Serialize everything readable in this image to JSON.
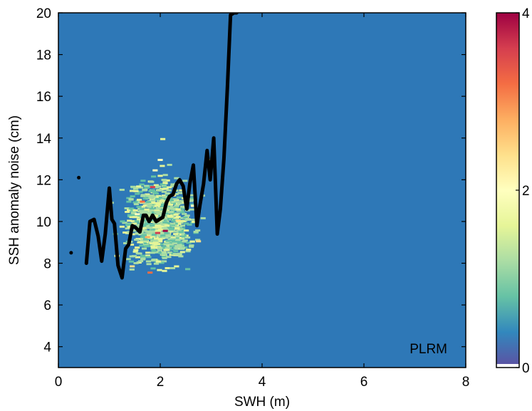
{
  "chart_data": {
    "type": "heatmap",
    "xlabel": "SWH (m)",
    "ylabel": "SSH anomaly noise (cm)",
    "xlim": [
      0,
      8
    ],
    "ylim": [
      3,
      20
    ],
    "xticks": [
      "0",
      "2",
      "4",
      "6",
      "8"
    ],
    "yticks": [
      "4",
      "6",
      "8",
      "10",
      "12",
      "14",
      "16",
      "18",
      "20"
    ],
    "annotation": "PLRM",
    "colorbar": {
      "range": [
        0,
        4
      ],
      "ticks": [
        "0",
        "2",
        "4"
      ],
      "colors": [
        "#5e4fa2",
        "#3288bd",
        "#66c2a5",
        "#abdda4",
        "#e6f598",
        "#ffffbf",
        "#fee08b",
        "#fdae61",
        "#f46d43",
        "#d53e4f",
        "#9e0142"
      ]
    },
    "background_color": "#2e78b7",
    "series": [
      {
        "name": "",
        "type": "line",
        "color": "#000000",
        "x": [
          0.55,
          0.62,
          0.7,
          0.78,
          0.85,
          0.92,
          1.0,
          1.05,
          1.1,
          1.17,
          1.25,
          1.32,
          1.38,
          1.45,
          1.52,
          1.6,
          1.67,
          1.72,
          1.78,
          1.85,
          1.92,
          1.98,
          2.05,
          2.12,
          2.18,
          2.25,
          2.32,
          2.38,
          2.45,
          2.52,
          2.58,
          2.65,
          2.72,
          2.78,
          2.85,
          2.92,
          2.98,
          3.05,
          3.12,
          3.18,
          3.25,
          3.32,
          3.38,
          3.45,
          3.5
        ],
        "y": [
          8.0,
          10.0,
          10.1,
          9.3,
          8.1,
          9.4,
          11.6,
          10.1,
          9.9,
          7.9,
          7.3,
          8.7,
          8.9,
          9.8,
          9.7,
          9.5,
          10.3,
          10.3,
          10.0,
          10.3,
          10.0,
          10.1,
          10.2,
          10.9,
          11.2,
          11.3,
          11.8,
          12.0,
          11.7,
          10.6,
          11.8,
          12.7,
          9.8,
          10.8,
          11.8,
          13.4,
          12.0,
          14.0,
          9.4,
          10.6,
          13.0,
          16.5,
          19.9,
          20.0,
          20.0
        ],
        "note": ""
      }
    ],
    "isolated_points": [
      {
        "x": 0.25,
        "y": 8.5
      },
      {
        "x": 0.4,
        "y": 12.1
      }
    ],
    "density": [
      {
        "x": 1.8,
        "y": 11.7,
        "v": 3.6
      },
      {
        "x": 1.6,
        "y": 11.0,
        "v": 3.2
      },
      {
        "x": 1.9,
        "y": 9.5,
        "v": 3.4
      },
      {
        "x": 2.05,
        "y": 9.6,
        "v": 3.8
      },
      {
        "x": 1.75,
        "y": 7.6,
        "v": 3.3
      },
      {
        "x": 1.7,
        "y": 9.3,
        "v": 2.6
      },
      {
        "x": 1.4,
        "y": 7.9,
        "v": 2.4
      },
      {
        "x": 2.2,
        "y": 11.3,
        "v": 2.2
      },
      {
        "x": 2.3,
        "y": 10.1,
        "v": 2.3
      },
      {
        "x": 2.7,
        "y": 9.1,
        "v": 2.3
      },
      {
        "x": 2.6,
        "y": 10.8,
        "v": 2.0
      },
      {
        "x": 1.85,
        "y": 12.5,
        "v": 2.0
      },
      {
        "x": 1.95,
        "y": 13.0,
        "v": 1.8
      },
      {
        "x": 2.0,
        "y": 14.0,
        "v": 1.7
      },
      {
        "x": 1.5,
        "y": 10.4,
        "v": 1.9
      },
      {
        "x": 1.2,
        "y": 9.8,
        "v": 1.7
      },
      {
        "x": 1.1,
        "y": 8.4,
        "v": 1.6
      },
      {
        "x": 2.9,
        "y": 13.0,
        "v": 1.6
      }
    ]
  }
}
